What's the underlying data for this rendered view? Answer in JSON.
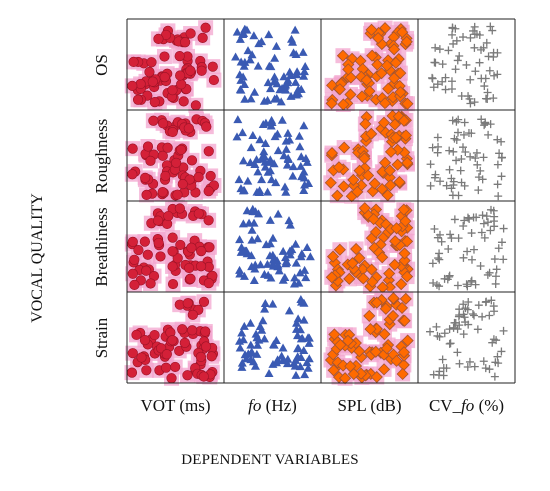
{
  "chart_data": {
    "type": "scatter",
    "title": "",
    "xlabel": "DEPENDENT VARIABLES",
    "ylabel": "VOCAL QUALITY",
    "rows": [
      "OS",
      "Roughness",
      "Breathiness",
      "Strain"
    ],
    "columns": [
      {
        "pre": "VOT (ms)",
        "ital": "",
        "post": ""
      },
      {
        "pre": "",
        "ital": "fo",
        "post": " (Hz)"
      },
      {
        "pre": "SPL (dB)",
        "ital": "",
        "post": ""
      },
      {
        "pre": "CV_",
        "ital": "fo",
        "post": " (%)"
      }
    ],
    "grid": true,
    "series": [
      {
        "variable": "VOT (ms)",
        "marker": "circle",
        "color": "#d42038",
        "halo": "#f3a6cf"
      },
      {
        "variable": "fo (Hz)",
        "marker": "triangle",
        "color": "#3a5ab3",
        "halo": ""
      },
      {
        "variable": "SPL (dB)",
        "marker": "diamond",
        "color": "#ff6a00",
        "halo": "#f3a6cf",
        "edge": "#a4542f"
      },
      {
        "variable": "CV_fo (%)",
        "marker": "plus",
        "color": "#7a7a7a",
        "halo": ""
      }
    ]
  }
}
